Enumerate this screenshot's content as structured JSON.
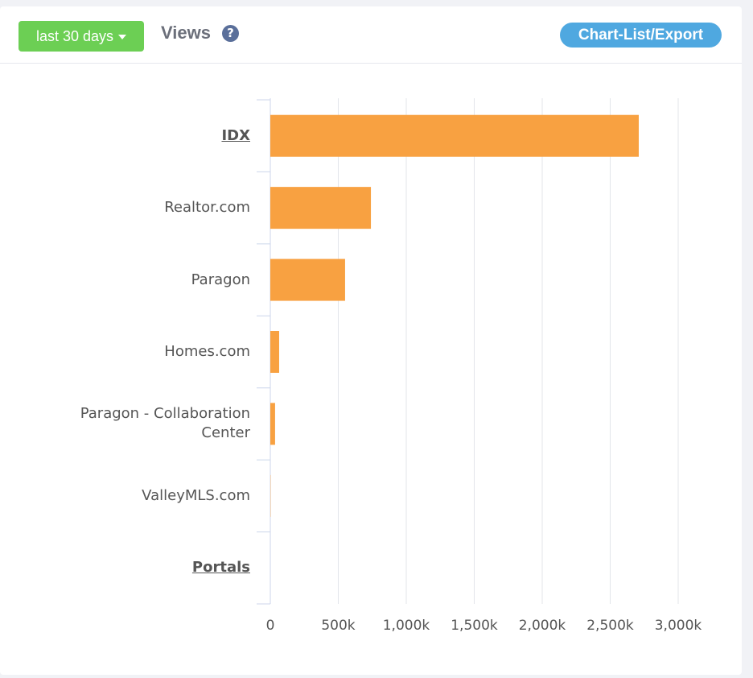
{
  "header": {
    "range_button": "last 30 days",
    "title": "Views",
    "export_button": "Chart-List/Export"
  },
  "chart_data": {
    "type": "hbar",
    "categories": [
      "IDX",
      "Realtor.com",
      "Paragon",
      "Homes.com",
      "Paragon - Collaboration Center",
      "ValleyMLS.com",
      "Portals"
    ],
    "linked": [
      true,
      false,
      false,
      false,
      false,
      false,
      true
    ],
    "values": [
      2710000,
      740000,
      550000,
      65000,
      35000,
      2000,
      0
    ],
    "color": "#f8a141",
    "xlim": [
      0,
      3000000
    ],
    "xticks": [
      0,
      {
        "value": 500000,
        "label": "500k"
      },
      {
        "value": 1000000,
        "label": "1,000k"
      },
      {
        "value": 1500000,
        "label": "1,500k"
      },
      {
        "value": 2000000,
        "label": "2,000k"
      },
      {
        "value": 2500000,
        "label": "2,500k"
      },
      {
        "value": 3000000,
        "label": "3,000k"
      }
    ],
    "grid": true
  }
}
